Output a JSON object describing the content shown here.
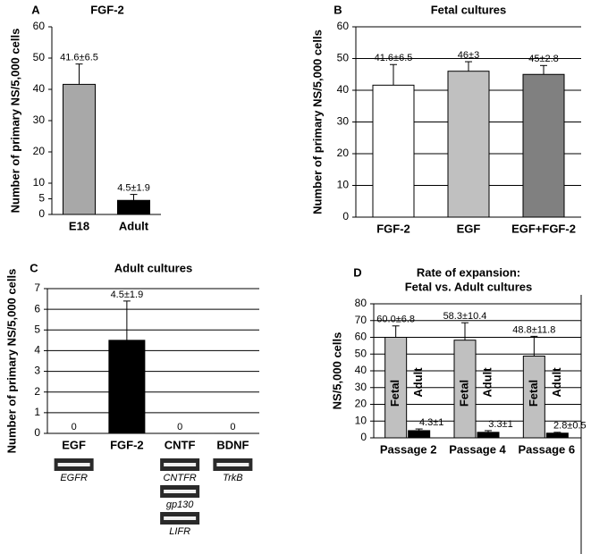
{
  "chart_data": [
    {
      "type": "bar",
      "panel": "A",
      "title": "FGF-2",
      "ylabel": "Number of primary NS/5,000 cells",
      "categories": [
        "E18",
        "Adult"
      ],
      "values": [
        41.6,
        4.5
      ],
      "errors": [
        6.5,
        1.9
      ],
      "value_labels": [
        "41.6±6.5",
        "4.5±1.9"
      ],
      "colors": [
        "#a8a8a8",
        "#000000"
      ],
      "ylim": [
        0,
        60
      ],
      "yticks": [
        0,
        5,
        10,
        20,
        30,
        40,
        50,
        60
      ],
      "grid": false
    },
    {
      "type": "bar",
      "panel": "B",
      "title": "Fetal cultures",
      "ylabel": "Number of primary NS/5,000 cells",
      "categories": [
        "FGF-2",
        "EGF",
        "EGF+FGF-2"
      ],
      "values": [
        41.6,
        46,
        45
      ],
      "errors": [
        6.5,
        3,
        2.8
      ],
      "value_labels": [
        "41.6±6.5",
        "46±3",
        "45±2.8"
      ],
      "colors": [
        "#ffffff",
        "#c0c0c0",
        "#808080"
      ],
      "ylim": [
        0,
        60
      ],
      "yticks": [
        0,
        10,
        20,
        30,
        40,
        50,
        60
      ],
      "grid": true
    },
    {
      "type": "bar",
      "panel": "C",
      "title": "Adult cultures",
      "ylabel": "Number of primary NS/5,000 cells",
      "categories": [
        "EGF",
        "FGF-2",
        "CNTF",
        "BDNF"
      ],
      "values": [
        0,
        4.5,
        0,
        0
      ],
      "errors": [
        null,
        1.9,
        null,
        null
      ],
      "value_labels": [
        "0",
        "4.5±1.9",
        "0",
        "0"
      ],
      "colors": [
        "#000000",
        "#000000",
        "#000000",
        "#000000"
      ],
      "gel_labels": [
        [
          "EGFR"
        ],
        [],
        [
          "CNTFR",
          "gp130",
          "LIFR"
        ],
        [
          "TrkB"
        ]
      ],
      "ylim": [
        0,
        7
      ],
      "yticks": [
        0,
        1,
        2,
        3,
        4,
        5,
        6,
        7
      ],
      "grid": true
    },
    {
      "type": "grouped_bar",
      "panel": "D",
      "title": [
        "Rate of expansion:",
        "Fetal vs. Adult cultures"
      ],
      "ylabel": "NS/5,000 cells",
      "categories": [
        "Passage 2",
        "Passage 4",
        "Passage 6"
      ],
      "series": [
        {
          "name": "Fetal",
          "color": "#c0c0c0",
          "values": [
            60.0,
            58.3,
            48.8
          ],
          "errors": [
            6.8,
            10.4,
            11.8
          ],
          "value_labels": [
            "60.0±6.8",
            "58.3±10.4",
            "48.8±11.8"
          ]
        },
        {
          "name": "Adult",
          "color": "#000000",
          "values": [
            4.3,
            3.3,
            2.8
          ],
          "errors": [
            1,
            1,
            0.5
          ],
          "value_labels": [
            "4.3±1",
            "3.3±1",
            "2.8±0.5"
          ]
        }
      ],
      "ylim": [
        0,
        80
      ],
      "yticks": [
        0,
        10,
        20,
        30,
        40,
        50,
        60,
        70,
        80
      ],
      "grid": true
    }
  ]
}
